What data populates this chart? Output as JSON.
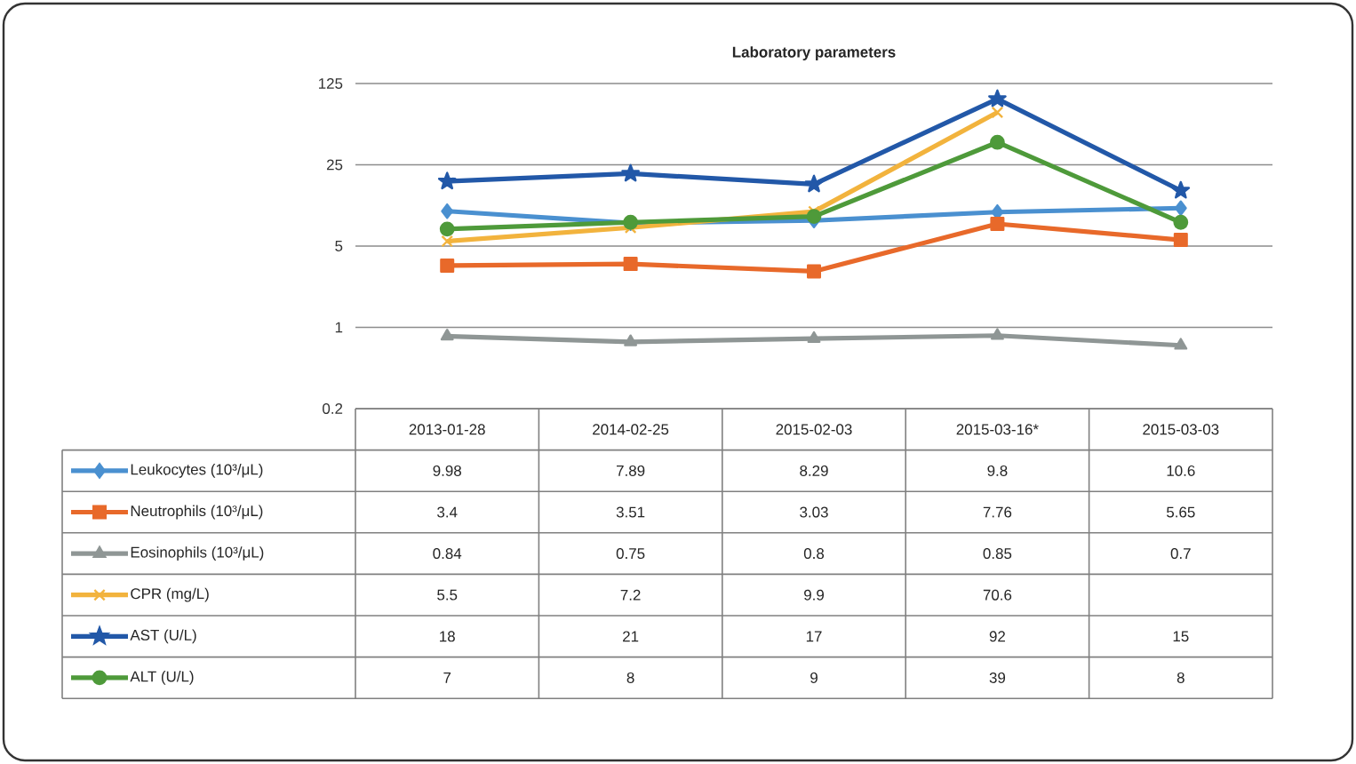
{
  "chart_data": {
    "type": "line",
    "title": "Laboratory parameters",
    "categories": [
      "2013-01-28",
      "2014-02-25",
      "2015-02-03",
      "2015-03-16*",
      "2015-03-03"
    ],
    "series": [
      {
        "name": "Leukocytes (10³/μL)",
        "color": "#4a90d0",
        "marker": "diamond",
        "values": [
          9.98,
          7.89,
          8.29,
          9.8,
          10.6
        ]
      },
      {
        "name": "Neutrophils (10³/μL)",
        "color": "#e8692a",
        "marker": "square",
        "values": [
          3.4,
          3.51,
          3.03,
          7.76,
          5.65
        ]
      },
      {
        "name": "Eosinophils (10³/μL)",
        "color": "#8f9695",
        "marker": "triangle",
        "values": [
          0.84,
          0.75,
          0.8,
          0.85,
          0.7
        ]
      },
      {
        "name": "CPR (mg/L)",
        "color": "#f2b33d",
        "marker": "cross",
        "values": [
          5.5,
          7.2,
          9.9,
          70.6,
          null
        ]
      },
      {
        "name": "AST (U/L)",
        "color": "#2258a8",
        "marker": "star",
        "values": [
          18,
          21,
          17,
          92,
          15
        ]
      },
      {
        "name": "ALT (U/L)",
        "color": "#4e9a3a",
        "marker": "circle",
        "values": [
          7,
          8,
          9,
          39,
          8
        ]
      }
    ],
    "log": "y",
    "ylim": [
      0.2,
      125
    ],
    "yticks": [
      0.2,
      1,
      5,
      25,
      125
    ],
    "grid": "y",
    "legend": "bottom",
    "data_labels": true,
    "line_style": "solid"
  }
}
